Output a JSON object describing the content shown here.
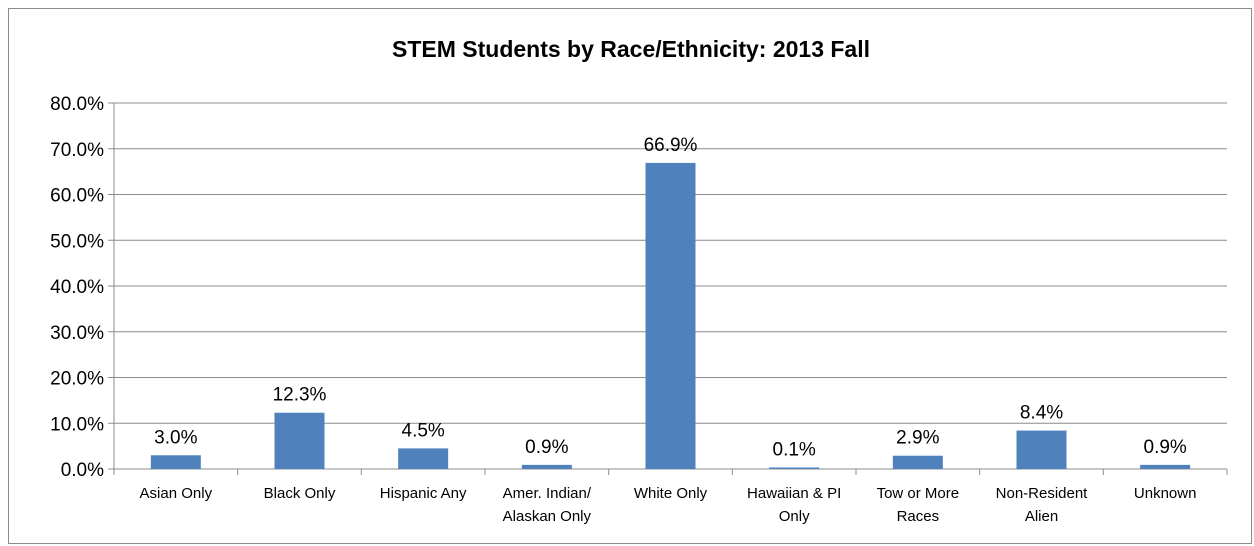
{
  "chart_data": {
    "type": "bar",
    "title": "STEM Students by Race/Ethnicity: 2013 Fall",
    "xlabel": "",
    "ylabel": "",
    "categories": [
      [
        "Asian Only"
      ],
      [
        "Black Only"
      ],
      [
        "Hispanic Any"
      ],
      [
        "Amer. Indian/",
        "Alaskan Only"
      ],
      [
        "White Only"
      ],
      [
        "Hawaiian & PI",
        "Only"
      ],
      [
        "Tow or More",
        "Races"
      ],
      [
        "Non-Resident",
        "Alien"
      ],
      [
        "Unknown"
      ]
    ],
    "values": [
      3.0,
      12.3,
      4.5,
      0.9,
      66.9,
      0.1,
      2.9,
      8.4,
      0.9
    ],
    "data_labels": [
      "3.0%",
      "12.3%",
      "4.5%",
      "0.9%",
      "66.9%",
      "0.1%",
      "2.9%",
      "8.4%",
      "0.9%"
    ],
    "ylim": [
      0,
      80
    ],
    "y_ticks": [
      "0.0%",
      "10.0%",
      "20.0%",
      "30.0%",
      "40.0%",
      "50.0%",
      "60.0%",
      "70.0%",
      "80.0%"
    ],
    "grid": true,
    "legend": "none",
    "bar_color": "#4f81bd",
    "grid_color": "#8c8c8c"
  }
}
